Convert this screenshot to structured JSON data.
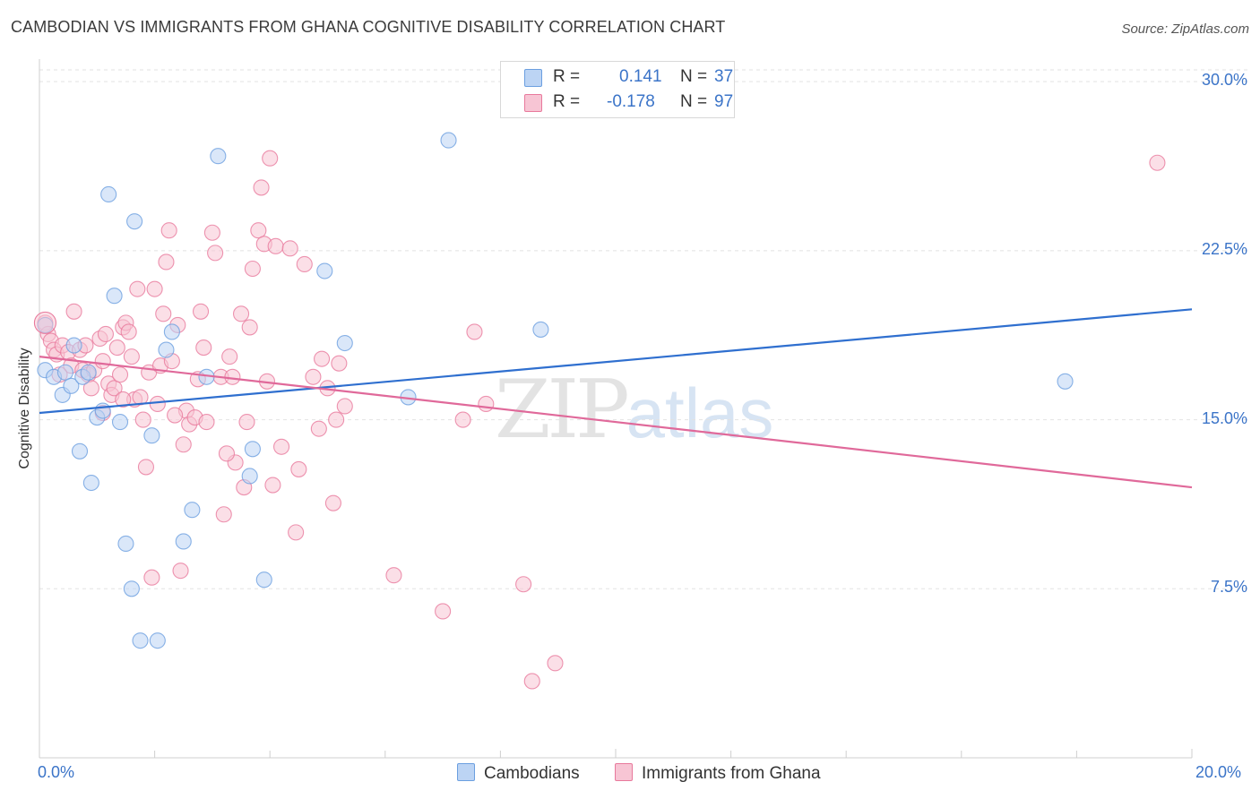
{
  "header": {
    "title": "CAMBODIAN VS IMMIGRANTS FROM GHANA COGNITIVE DISABILITY CORRELATION CHART",
    "source": "Source: ZipAtlas.com"
  },
  "watermark": {
    "zip": "ZIP",
    "atlas": "atlas"
  },
  "legend": {
    "rows": [
      {
        "r_label": "R =",
        "r_value": "0.141",
        "n_label": "N =",
        "n_value": "37",
        "color": "#a9c8ef"
      },
      {
        "r_label": "R =",
        "r_value": "-0.178",
        "n_label": "N =",
        "n_value": "97",
        "color": "#f5b8cb"
      }
    ]
  },
  "bottom_legend": {
    "series1": "Cambodians",
    "series2": "Immigrants from Ghana"
  },
  "chart_data": {
    "type": "scatter",
    "title": "CAMBODIAN VS IMMIGRANTS FROM GHANA COGNITIVE DISABILITY CORRELATION CHART",
    "xlabel": "",
    "ylabel": "Cognitive Disability",
    "xlim": [
      0,
      20
    ],
    "ylim": [
      0,
      31
    ],
    "x_tick_labels": [
      "0.0%",
      "20.0%"
    ],
    "y_ticks": [
      7.5,
      15.0,
      22.5,
      30.0
    ],
    "y_tick_labels": [
      "7.5%",
      "15.0%",
      "22.5%",
      "30.0%"
    ],
    "grid": true,
    "series": [
      {
        "name": "Cambodians",
        "color": "#6b9fe0",
        "fill": "#bcd4f4",
        "trend": {
          "x": [
            0,
            20
          ],
          "y": [
            15.3,
            19.9
          ]
        },
        "points": [
          [
            0.1,
            19.2
          ],
          [
            0.1,
            17.2
          ],
          [
            0.25,
            16.9
          ],
          [
            0.4,
            16.1
          ],
          [
            0.45,
            17.1
          ],
          [
            0.55,
            16.5
          ],
          [
            0.75,
            16.9
          ],
          [
            0.85,
            17.1
          ],
          [
            1.0,
            15.1
          ],
          [
            1.1,
            15.4
          ],
          [
            0.7,
            13.6
          ],
          [
            0.9,
            12.2
          ],
          [
            1.2,
            25.0
          ],
          [
            1.3,
            20.5
          ],
          [
            1.4,
            14.9
          ],
          [
            1.5,
            9.5
          ],
          [
            1.6,
            7.5
          ],
          [
            1.65,
            23.8
          ],
          [
            1.75,
            5.2
          ],
          [
            1.95,
            14.3
          ],
          [
            2.05,
            5.2
          ],
          [
            2.2,
            18.1
          ],
          [
            2.3,
            18.9
          ],
          [
            2.5,
            9.6
          ],
          [
            2.65,
            11.0
          ],
          [
            2.9,
            16.9
          ],
          [
            3.1,
            26.7
          ],
          [
            3.7,
            13.7
          ],
          [
            3.65,
            12.5
          ],
          [
            3.9,
            7.9
          ],
          [
            4.95,
            21.6
          ],
          [
            5.3,
            18.4
          ],
          [
            6.4,
            16.0
          ],
          [
            7.1,
            27.4
          ],
          [
            8.7,
            19.0
          ],
          [
            17.8,
            16.7
          ],
          [
            0.6,
            18.3
          ]
        ]
      },
      {
        "name": "Immigrants from Ghana",
        "color": "#e8799c",
        "fill": "#f7c5d4",
        "trend": {
          "x": [
            0,
            20
          ],
          "y": [
            17.8,
            12.0
          ]
        },
        "points": [
          [
            0.1,
            19.3
          ],
          [
            0.15,
            18.8
          ],
          [
            0.2,
            18.5
          ],
          [
            0.25,
            18.1
          ],
          [
            0.3,
            17.9
          ],
          [
            0.4,
            18.3
          ],
          [
            0.5,
            18.0
          ],
          [
            0.55,
            17.4
          ],
          [
            0.6,
            19.8
          ],
          [
            0.7,
            18.1
          ],
          [
            0.75,
            17.2
          ],
          [
            0.8,
            18.3
          ],
          [
            0.85,
            17.0
          ],
          [
            0.9,
            16.4
          ],
          [
            0.95,
            17.2
          ],
          [
            1.05,
            18.6
          ],
          [
            1.1,
            17.6
          ],
          [
            1.15,
            18.8
          ],
          [
            1.2,
            16.6
          ],
          [
            1.25,
            16.1
          ],
          [
            1.3,
            16.4
          ],
          [
            1.35,
            18.2
          ],
          [
            1.4,
            17.0
          ],
          [
            1.45,
            19.1
          ],
          [
            1.5,
            19.3
          ],
          [
            1.55,
            18.9
          ],
          [
            1.6,
            17.8
          ],
          [
            1.65,
            15.9
          ],
          [
            1.7,
            20.8
          ],
          [
            1.75,
            16.0
          ],
          [
            1.8,
            15.0
          ],
          [
            1.85,
            12.9
          ],
          [
            1.9,
            17.1
          ],
          [
            2.0,
            20.8
          ],
          [
            2.05,
            15.7
          ],
          [
            2.1,
            17.4
          ],
          [
            2.15,
            19.7
          ],
          [
            2.2,
            22.0
          ],
          [
            2.25,
            23.4
          ],
          [
            2.3,
            17.6
          ],
          [
            2.4,
            19.2
          ],
          [
            2.45,
            8.3
          ],
          [
            2.5,
            13.9
          ],
          [
            2.55,
            15.4
          ],
          [
            2.6,
            14.8
          ],
          [
            2.7,
            15.1
          ],
          [
            2.75,
            16.8
          ],
          [
            2.8,
            19.8
          ],
          [
            2.85,
            18.2
          ],
          [
            2.9,
            14.9
          ],
          [
            3.0,
            23.3
          ],
          [
            3.05,
            22.4
          ],
          [
            3.15,
            16.9
          ],
          [
            3.2,
            10.8
          ],
          [
            3.3,
            17.8
          ],
          [
            3.35,
            16.9
          ],
          [
            3.4,
            13.1
          ],
          [
            3.5,
            19.7
          ],
          [
            3.55,
            12.0
          ],
          [
            3.6,
            14.9
          ],
          [
            3.65,
            19.1
          ],
          [
            3.7,
            21.7
          ],
          [
            3.8,
            23.4
          ],
          [
            3.85,
            25.3
          ],
          [
            3.9,
            22.8
          ],
          [
            3.95,
            16.7
          ],
          [
            4.0,
            26.6
          ],
          [
            4.05,
            12.1
          ],
          [
            4.1,
            22.7
          ],
          [
            4.2,
            13.8
          ],
          [
            4.35,
            22.6
          ],
          [
            4.45,
            10.0
          ],
          [
            4.5,
            12.8
          ],
          [
            4.6,
            21.9
          ],
          [
            4.75,
            16.9
          ],
          [
            4.85,
            14.6
          ],
          [
            4.9,
            17.7
          ],
          [
            5.0,
            16.4
          ],
          [
            5.1,
            11.3
          ],
          [
            5.15,
            15.0
          ],
          [
            5.2,
            17.5
          ],
          [
            5.3,
            15.6
          ],
          [
            6.15,
            8.1
          ],
          [
            7.0,
            6.5
          ],
          [
            7.35,
            15.0
          ],
          [
            7.55,
            18.9
          ],
          [
            7.75,
            15.7
          ],
          [
            8.4,
            7.7
          ],
          [
            8.55,
            3.4
          ],
          [
            8.95,
            4.2
          ],
          [
            19.4,
            26.4
          ],
          [
            1.95,
            8.0
          ],
          [
            1.1,
            15.3
          ],
          [
            0.35,
            17.0
          ],
          [
            2.35,
            15.2
          ],
          [
            3.25,
            13.5
          ],
          [
            1.45,
            15.9
          ]
        ]
      }
    ]
  }
}
